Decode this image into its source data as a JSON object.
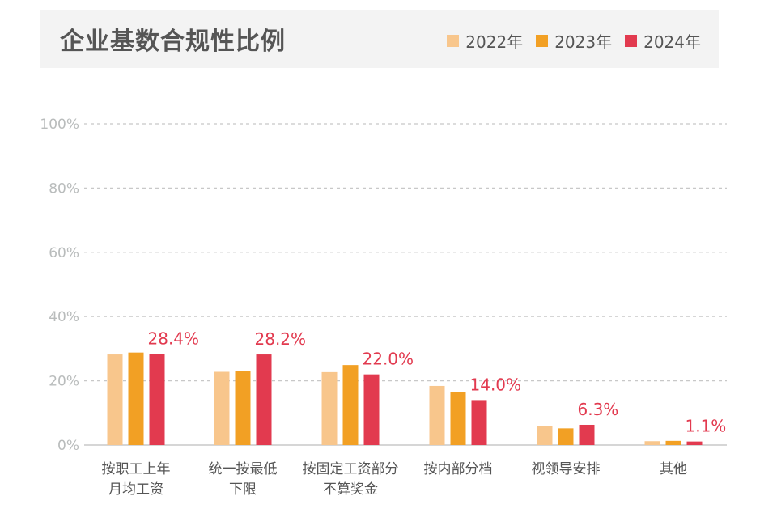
{
  "colors": {
    "series_2022": "#f8c68c",
    "series_2023": "#f2a024",
    "series_2024": "#e23a4f",
    "grid": "#c8c8c8",
    "axis_label": "#b9bcbc",
    "value_label": "#e23a4f",
    "category_label": "#555555"
  },
  "chart_data": {
    "type": "bar",
    "title": "企业基数合规性比例",
    "legend_position": "top-right",
    "grid": true,
    "ylim": [
      0,
      100
    ],
    "yticks": [
      0,
      20,
      40,
      60,
      80,
      100
    ],
    "ytick_labels": [
      "0%",
      "20%",
      "40%",
      "60%",
      "80%",
      "100%"
    ],
    "categories": [
      [
        "按职工上年",
        "月均工资"
      ],
      [
        "统一按最低",
        "下限"
      ],
      [
        "按固定工资部分",
        "不算奖金"
      ],
      [
        "按内部分档"
      ],
      [
        "视领导安排"
      ],
      [
        "其他"
      ]
    ],
    "series": [
      {
        "name": "2022年",
        "values": [
          28.2,
          22.8,
          22.7,
          18.4,
          6.0,
          1.2
        ]
      },
      {
        "name": "2023年",
        "values": [
          28.8,
          23.0,
          24.9,
          16.5,
          5.2,
          1.3
        ]
      },
      {
        "name": "2024年",
        "values": [
          28.4,
          28.2,
          22.0,
          14.0,
          6.3,
          1.1
        ]
      }
    ],
    "data_labels": [
      "28.4%",
      "28.2%",
      "22.0%",
      "14.0%",
      "6.3%",
      "1.1%"
    ]
  }
}
